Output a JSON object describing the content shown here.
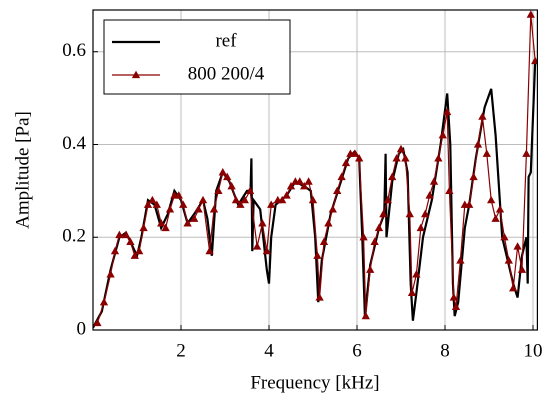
{
  "chart_data": {
    "type": "line",
    "xlabel": "Frequency [kHz]",
    "ylabel": "Amplitude [Pa]",
    "xlim": [
      0,
      10.1
    ],
    "ylim": [
      0,
      0.69
    ],
    "xticks": [
      2,
      4,
      6,
      8,
      10
    ],
    "yticks": [
      0,
      0.2,
      0.4,
      0.6
    ],
    "grid": true,
    "legend": "upper left",
    "series": [
      {
        "name": "ref",
        "color": "#000000",
        "marker": "none",
        "x": [
          0,
          0.2,
          0.4,
          0.6,
          0.75,
          0.9,
          1.0,
          1.1,
          1.25,
          1.4,
          1.55,
          1.7,
          1.85,
          2.0,
          2.15,
          2.3,
          2.5,
          2.6,
          2.7,
          2.8,
          2.95,
          3.1,
          3.3,
          3.5,
          3.58,
          3.6,
          3.62,
          3.65,
          3.8,
          3.95,
          4.0,
          4.05,
          4.15,
          4.4,
          4.6,
          4.8,
          4.95,
          5.05,
          5.12,
          5.2,
          5.4,
          5.6,
          5.8,
          5.95,
          6.05,
          6.12,
          6.18,
          6.3,
          6.5,
          6.62,
          6.65,
          6.67,
          6.8,
          6.95,
          7.05,
          7.15,
          7.22,
          7.27,
          7.35,
          7.5,
          7.7,
          7.9,
          8.05,
          8.12,
          8.18,
          8.22,
          8.3,
          8.45,
          8.55,
          8.7,
          8.9,
          9.05,
          9.15,
          9.3,
          9.4,
          9.55,
          9.65,
          9.75,
          9.85,
          9.88,
          9.9,
          9.95,
          10.05
        ],
        "values": [
          0.005,
          0.04,
          0.13,
          0.2,
          0.21,
          0.18,
          0.16,
          0.2,
          0.28,
          0.27,
          0.22,
          0.25,
          0.3,
          0.28,
          0.23,
          0.25,
          0.28,
          0.24,
          0.16,
          0.3,
          0.34,
          0.32,
          0.27,
          0.3,
          0.3,
          0.37,
          0.17,
          0.28,
          0.26,
          0.13,
          0.1,
          0.2,
          0.27,
          0.29,
          0.32,
          0.31,
          0.3,
          0.2,
          0.06,
          0.15,
          0.25,
          0.31,
          0.37,
          0.385,
          0.37,
          0.2,
          0.03,
          0.14,
          0.22,
          0.25,
          0.38,
          0.2,
          0.32,
          0.38,
          0.39,
          0.34,
          0.1,
          0.02,
          0.08,
          0.2,
          0.28,
          0.4,
          0.51,
          0.4,
          0.1,
          0.03,
          0.06,
          0.22,
          0.27,
          0.37,
          0.48,
          0.52,
          0.42,
          0.2,
          0.16,
          0.1,
          0.07,
          0.16,
          0.2,
          0.1,
          0.33,
          0.34,
          0.58
        ]
      },
      {
        "name": "800 200/4",
        "color": "#8b0000",
        "marker": "triangle",
        "x": [
          0.1,
          0.25,
          0.4,
          0.5,
          0.6,
          0.75,
          0.85,
          0.95,
          1.05,
          1.15,
          1.25,
          1.35,
          1.45,
          1.55,
          1.65,
          1.75,
          1.85,
          1.95,
          2.05,
          2.15,
          2.3,
          2.4,
          2.5,
          2.65,
          2.75,
          2.85,
          2.95,
          3.05,
          3.15,
          3.25,
          3.35,
          3.45,
          3.57,
          3.73,
          3.85,
          3.95,
          4.05,
          4.2,
          4.3,
          4.4,
          4.5,
          4.6,
          4.7,
          4.8,
          4.9,
          5.0,
          5.1,
          5.15,
          5.25,
          5.35,
          5.45,
          5.55,
          5.65,
          5.75,
          5.85,
          5.95,
          6.05,
          6.15,
          6.2,
          6.3,
          6.4,
          6.5,
          6.6,
          6.7,
          6.8,
          6.9,
          7.0,
          7.1,
          7.2,
          7.25,
          7.35,
          7.45,
          7.55,
          7.65,
          7.75,
          7.85,
          7.95,
          8.05,
          8.1,
          8.2,
          8.25,
          8.35,
          8.45,
          8.55,
          8.65,
          8.75,
          8.85,
          8.95,
          9.05,
          9.15,
          9.25,
          9.35,
          9.45,
          9.55,
          9.65,
          9.75,
          9.85,
          9.95,
          10.05
        ],
        "values": [
          0.015,
          0.06,
          0.12,
          0.17,
          0.205,
          0.205,
          0.19,
          0.16,
          0.17,
          0.22,
          0.27,
          0.28,
          0.27,
          0.23,
          0.22,
          0.26,
          0.29,
          0.29,
          0.27,
          0.23,
          0.24,
          0.26,
          0.28,
          0.17,
          0.26,
          0.3,
          0.34,
          0.33,
          0.31,
          0.28,
          0.27,
          0.28,
          0.3,
          0.18,
          0.23,
          0.17,
          0.27,
          0.28,
          0.28,
          0.29,
          0.31,
          0.32,
          0.32,
          0.31,
          0.32,
          0.28,
          0.16,
          0.07,
          0.19,
          0.23,
          0.26,
          0.3,
          0.33,
          0.36,
          0.38,
          0.38,
          0.37,
          0.2,
          0.03,
          0.13,
          0.19,
          0.22,
          0.25,
          0.28,
          0.33,
          0.37,
          0.39,
          0.37,
          0.25,
          0.08,
          0.12,
          0.22,
          0.25,
          0.29,
          0.32,
          0.37,
          0.42,
          0.47,
          0.3,
          0.07,
          0.05,
          0.15,
          0.27,
          0.27,
          0.33,
          0.4,
          0.46,
          0.38,
          0.28,
          0.24,
          0.26,
          0.2,
          0.15,
          0.09,
          0.18,
          0.13,
          0.38,
          0.68,
          0.58
        ]
      }
    ]
  }
}
